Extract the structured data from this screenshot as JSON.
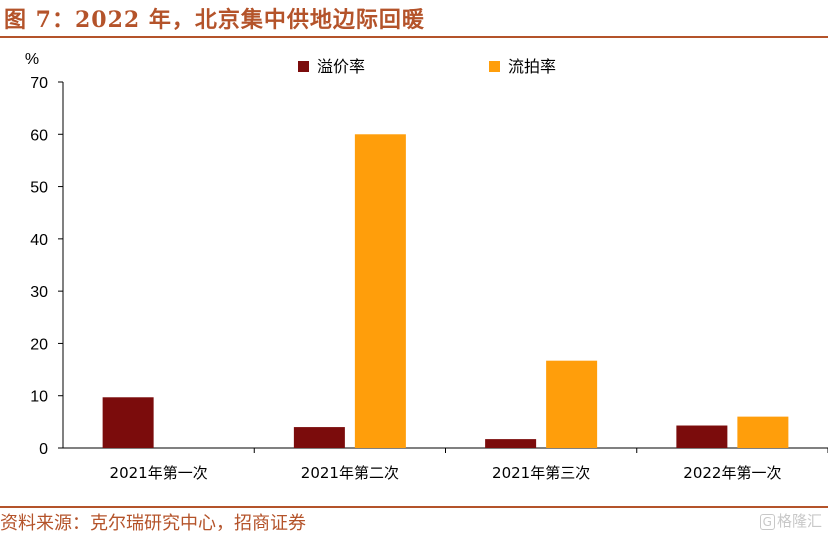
{
  "header": {
    "title": "图 7：2022 年，北京集中供地边际回暖"
  },
  "footer": {
    "source": "资料来源：克尔瑞研究中心，招商证券",
    "watermark_text": "格隆汇"
  },
  "colors": {
    "premium": "#7b0c0c",
    "failed": "#ff9e0b",
    "accent": "#b4532a"
  },
  "chart_data": {
    "type": "bar",
    "title": "",
    "xlabel": "",
    "ylabel": "%",
    "categories": [
      "2021年第一次",
      "2021年第二次",
      "2021年第三次",
      "2022年第一次"
    ],
    "series": [
      {
        "name": "溢价率",
        "values": [
          9.7,
          4.0,
          1.7,
          4.3
        ]
      },
      {
        "name": "流拍率",
        "values": [
          0,
          60.0,
          16.7,
          6.0
        ]
      }
    ],
    "ylim": [
      0,
      70
    ],
    "yticks": [
      0,
      10,
      20,
      30,
      40,
      50,
      60,
      70
    ],
    "grid": false,
    "legend": "top-center"
  }
}
